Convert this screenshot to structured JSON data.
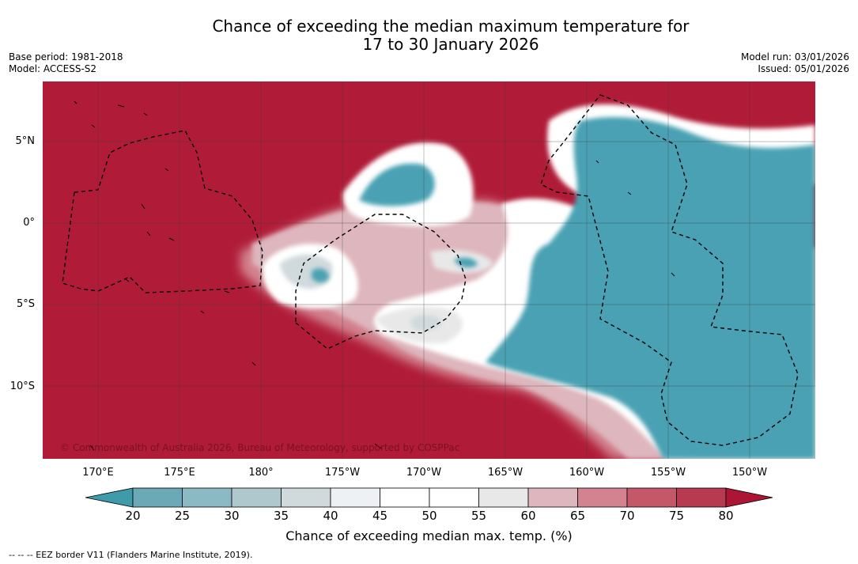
{
  "header": {
    "title_line1": "Chance of exceeding the median maximum temperature for",
    "title_line2": "17 to 30 January 2026",
    "base_period": "Base period: 1981-2018",
    "model": "Model: ACCESS-S2",
    "model_run": "Model run: 03/01/2026",
    "issued": "Issued: 05/01/2026"
  },
  "map": {
    "lat_labels": [
      "5°N",
      "0°",
      "5°S",
      "10°S"
    ],
    "lon_labels": [
      "170°E",
      "175°E",
      "180°",
      "175°W",
      "170°W",
      "165°W",
      "160°W",
      "155°W",
      "150°W"
    ],
    "copyright": "© Commonwealth of Australia 2026, Bureau of Meteorology, supported by COSPPac",
    "colors": {
      "high": "#b01c38",
      "low": "#4aa1b3",
      "neutral": "#ffffff"
    }
  },
  "colorbar": {
    "ticks": [
      "20",
      "25",
      "30",
      "35",
      "40",
      "45",
      "50",
      "55",
      "60",
      "65",
      "70",
      "75",
      "80"
    ],
    "colors": [
      "#3f9aaa",
      "#6aa9b5",
      "#8bb9c4",
      "#aec8cd",
      "#d0d9dc",
      "#eef1f3",
      "#ffffff",
      "#ffffff",
      "#e8e8e8",
      "#deb6bd",
      "#d2838f",
      "#c45768",
      "#b83a50",
      "#ac1634"
    ],
    "title": "Chance of exceeding median max. temp. (%)"
  },
  "footer": {
    "legend": "--  --  -- EEZ border V11 (Flanders Marine Institute, 2019)."
  }
}
